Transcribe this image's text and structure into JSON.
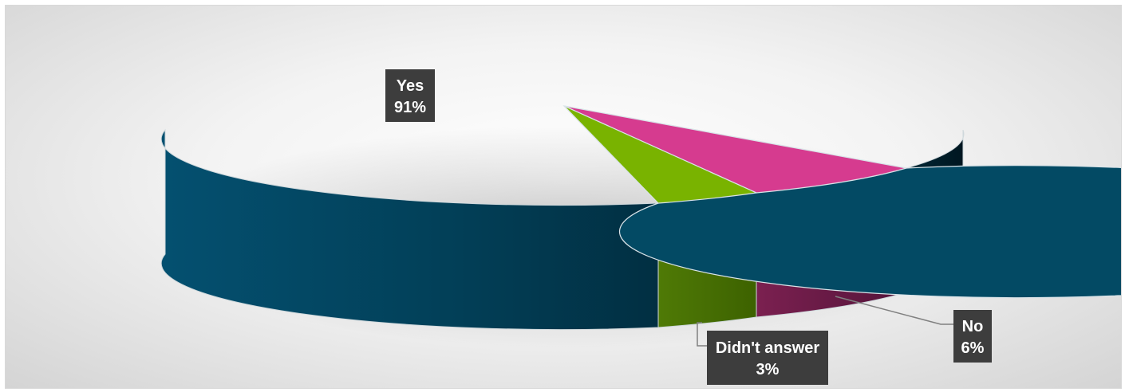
{
  "chart_data": {
    "type": "pie",
    "style": "3d",
    "slices": [
      {
        "label": "Yes",
        "value": 91,
        "display": "91%",
        "color": "#034a64"
      },
      {
        "label": "No",
        "value": 6,
        "display": "6%",
        "color": "#d63b8f"
      },
      {
        "label": "Didn't answer",
        "value": 3,
        "display": "3%",
        "color": "#79b300"
      }
    ],
    "legend": "none",
    "grid": false
  }
}
